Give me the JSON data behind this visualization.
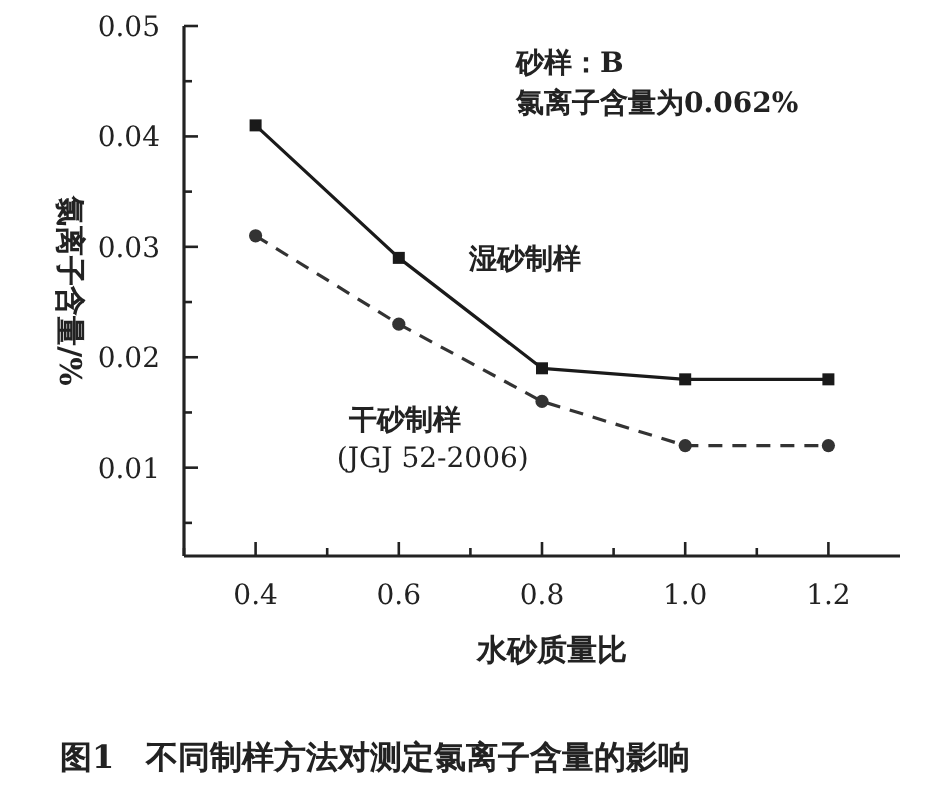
{
  "chart_data": {
    "type": "line",
    "ylabel": "氯离子含量/%",
    "xlabel": "水砂质量比",
    "x": [
      0.4,
      0.6,
      0.8,
      1.0,
      1.2
    ],
    "series": [
      {
        "name": "湿砂制样",
        "color": "#1a1a1a",
        "values": [
          0.041,
          0.029,
          0.019,
          0.018,
          0.018
        ],
        "marker": "square",
        "line_style": "solid"
      },
      {
        "name": "干砂制样 (JGJ 52-2006)",
        "color": "#333333",
        "values": [
          0.031,
          0.023,
          0.016,
          0.012,
          0.012
        ],
        "marker": "circle",
        "line_style": "dashed"
      }
    ],
    "xlim": [
      0.3,
      1.3
    ],
    "ylim": [
      0.002,
      0.05
    ],
    "xticks": [
      {
        "value": 0.3,
        "label": null
      },
      0.4,
      {
        "value": 0.5,
        "label": null
      },
      0.6,
      {
        "value": 0.7,
        "label": null
      },
      0.8,
      {
        "value": 0.9,
        "label": null
      },
      {
        "value": 1.0,
        "label": "1.0"
      },
      {
        "value": 1.1,
        "label": null
      },
      1.2
    ],
    "yticks": [
      {
        "value": 0.005,
        "label": null
      },
      0.01,
      {
        "value": 0.015,
        "label": null
      },
      0.02,
      {
        "value": 0.025,
        "label": null
      },
      0.03,
      {
        "value": 0.035,
        "label": null
      },
      0.04,
      {
        "value": 0.045,
        "label": null
      },
      0.05
    ],
    "grid": false,
    "legend": false,
    "annotations": [
      "砂样：B\n氯离子含量为0.062%",
      "图1　不同制样方法对测定氯离子含量的影响"
    ]
  }
}
